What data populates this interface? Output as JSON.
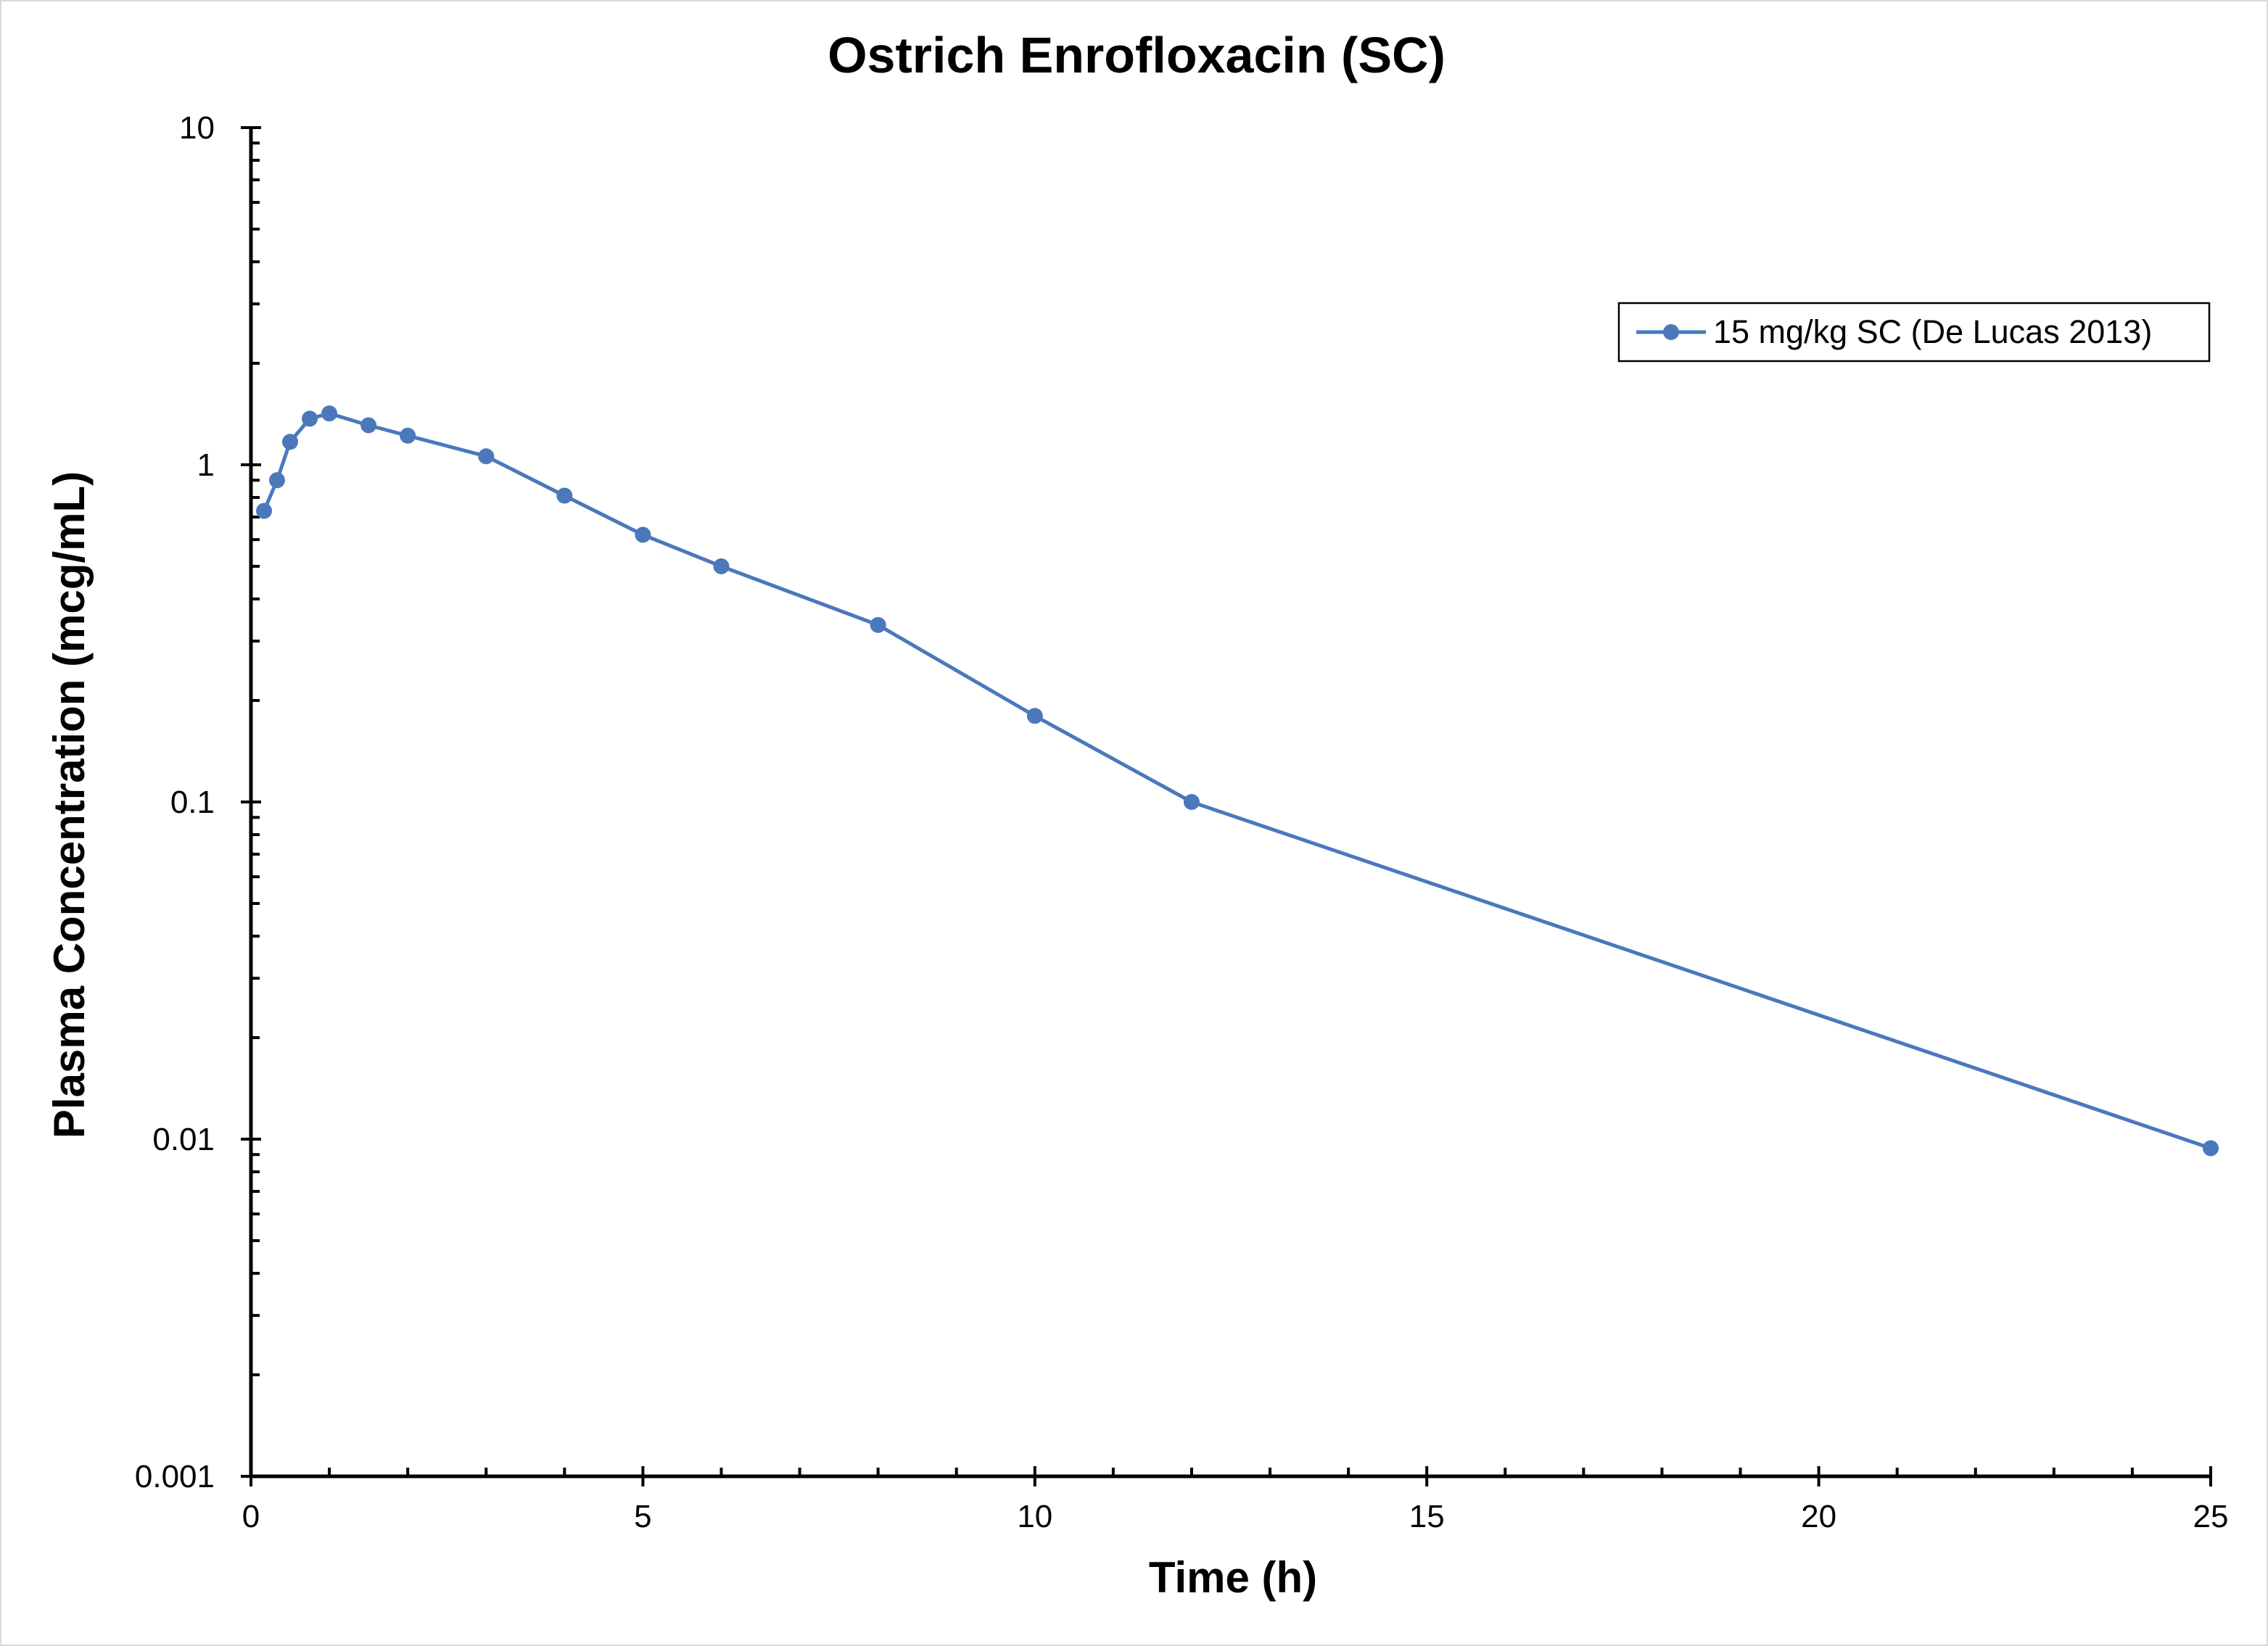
{
  "chart_data": {
    "type": "line",
    "title": "Ostrich Enrofloxacin (SC)",
    "xlabel": "Time (h)",
    "ylabel": "Plasma Concentration (mcg/mL)",
    "xlim": [
      0,
      25
    ],
    "ylim": [
      0.001,
      10
    ],
    "yscale": "log",
    "x_ticks": [
      0,
      5,
      10,
      15,
      20,
      25
    ],
    "x_tick_labels": [
      "0",
      "5",
      "10",
      "15",
      "20",
      "25"
    ],
    "y_ticks": [
      0.001,
      0.01,
      0.1,
      1,
      10
    ],
    "y_tick_labels": [
      "0.001",
      "0.01",
      "0.1",
      "1",
      "10"
    ],
    "grid": false,
    "legend_position": "top-right",
    "series": [
      {
        "name": "15 mg/kg SC (De Lucas 2013)",
        "color": "#4a78bb",
        "marker": "circle",
        "x": [
          0.167,
          0.333,
          0.5,
          0.75,
          1,
          1.5,
          2,
          3,
          4,
          5,
          6,
          8,
          10,
          12,
          25
        ],
        "y": [
          0.73,
          0.9,
          1.17,
          1.37,
          1.42,
          1.31,
          1.22,
          1.06,
          0.81,
          0.62,
          0.5,
          0.335,
          0.18,
          0.1,
          0.0094
        ]
      }
    ]
  }
}
